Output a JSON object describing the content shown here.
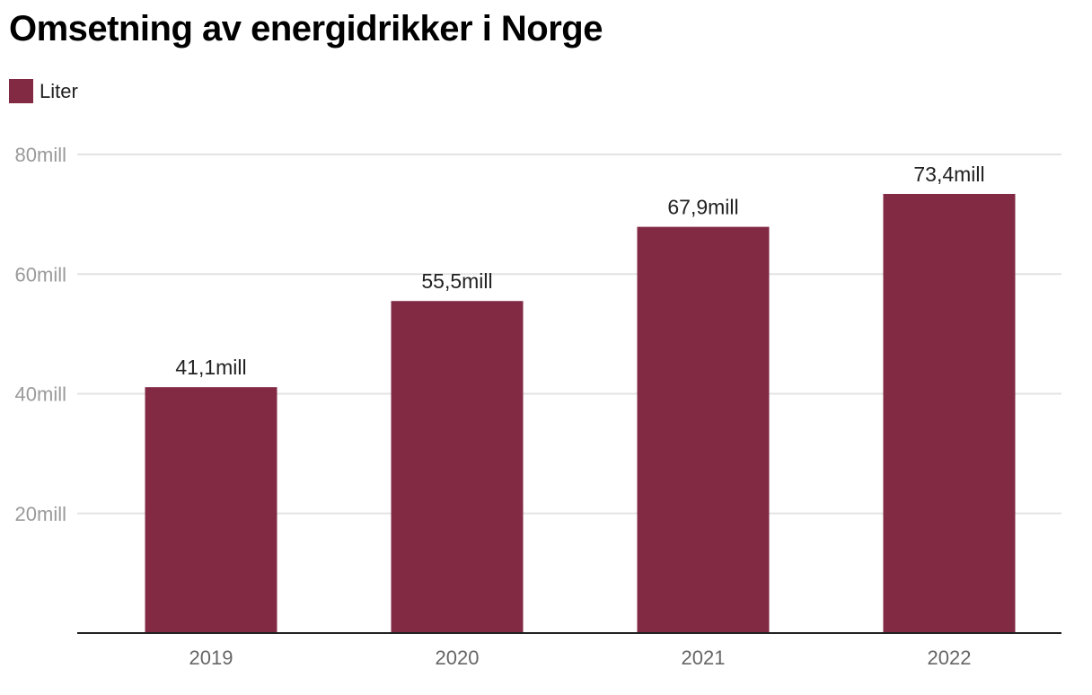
{
  "title": "Omsetning av energidrikker i Norge",
  "legend": {
    "label": "Liter"
  },
  "colors": {
    "bar": "#822944",
    "grid": "#e3e3e3",
    "axis": "#222222"
  },
  "chart_data": {
    "type": "bar",
    "title": "Omsetning av energidrikker i Norge",
    "categories": [
      "2019",
      "2020",
      "2021",
      "2022"
    ],
    "series": [
      {
        "name": "Liter",
        "values": [
          41100000,
          55500000,
          67900000,
          73400000
        ]
      }
    ],
    "data_labels": [
      "41,1mill",
      "55,5mill",
      "67,9mill",
      "73,4mill"
    ],
    "ylim": [
      0,
      80000000
    ],
    "yticks": [
      20000000,
      40000000,
      60000000,
      80000000
    ],
    "ytick_labels": [
      "20mill",
      "40mill",
      "60mill",
      "80mill"
    ],
    "grid": true,
    "legend_position": "top-left"
  }
}
